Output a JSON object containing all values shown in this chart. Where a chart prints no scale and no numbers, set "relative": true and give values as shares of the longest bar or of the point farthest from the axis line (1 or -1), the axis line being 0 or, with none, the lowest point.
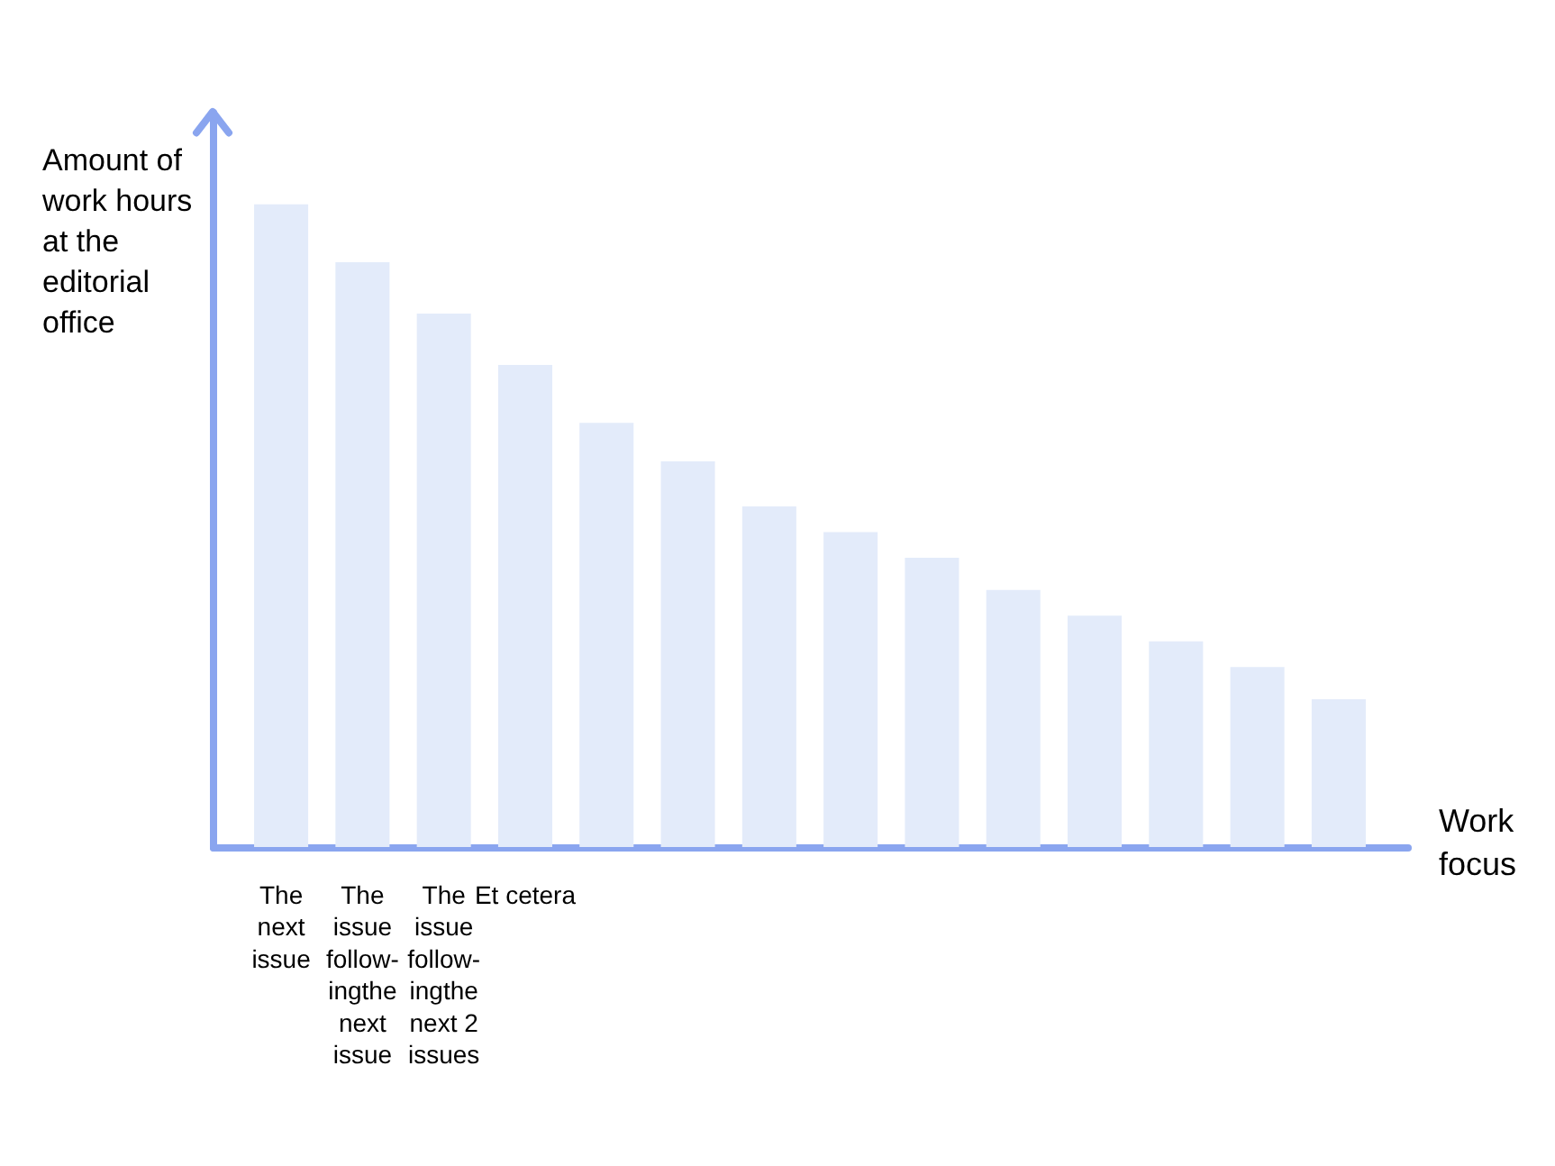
{
  "chart_data": {
    "type": "bar",
    "relative": true,
    "xlabel": "Work focus",
    "ylabel": "Amount of work hours at the editorial office",
    "categories": [
      "The next issue",
      "The issue follow-ingthe next issue",
      "The issue follow-ingthe next 2 issues",
      "Et cetera",
      null,
      null,
      null,
      null,
      null,
      null,
      null,
      null,
      null,
      null
    ],
    "values": [
      1,
      0.91,
      0.83,
      0.75,
      0.66,
      0.6,
      0.53,
      0.49,
      0.45,
      0.4,
      0.36,
      0.32,
      0.28,
      0.23
    ],
    "color": "#e3ebfa",
    "tick_labels": "x"
  }
}
